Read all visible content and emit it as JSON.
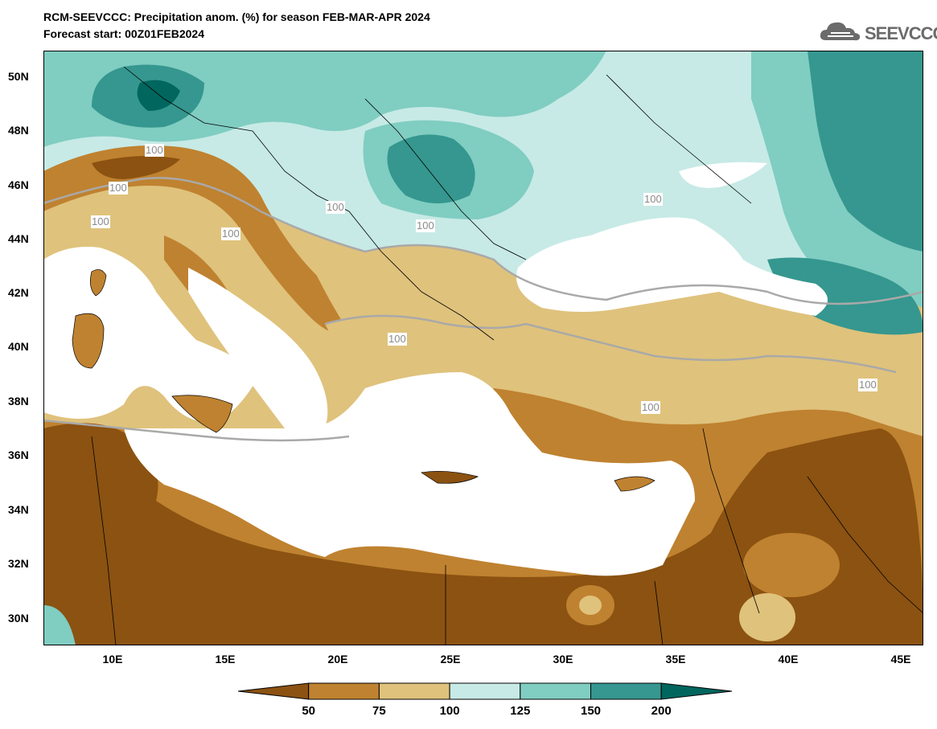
{
  "header": {
    "title_line1": "RCM-SEEVCCC: Precipitation anom. (%) for season FEB-MAR-APR 2024",
    "title_line2": "Forecast start: 00Z01FEB2024",
    "logo_text": "SEEVCCC",
    "logo_icon": "cloud-icon"
  },
  "map": {
    "lat_labels": [
      "50N",
      "48N",
      "46N",
      "44N",
      "42N",
      "40N",
      "38N",
      "36N",
      "34N",
      "32N",
      "30N"
    ],
    "lon_labels": [
      "10E",
      "15E",
      "20E",
      "25E",
      "30E",
      "35E",
      "40E",
      "45E"
    ],
    "contour_labels": [
      "100",
      "100",
      "100",
      "100",
      "100",
      "100",
      "100",
      "100",
      "100",
      "100"
    ],
    "lon_range": [
      7,
      46
    ],
    "lat_range": [
      29,
      51
    ],
    "sea_color": "#ffffff",
    "contour_color": "#a9a9a9"
  },
  "colorbar": {
    "ticks": [
      "50",
      "75",
      "100",
      "125",
      "150",
      "200"
    ],
    "colors": [
      "#8b5211",
      "#bf8230",
      "#dfc27c",
      "#c7eae6",
      "#80cdc1",
      "#35978f",
      "#01665e"
    ],
    "color_meaning": [
      "<50 dark brown",
      "50-75",
      "75-100",
      "100-125",
      "125-150",
      "150-200",
      ">200 dark teal"
    ]
  }
}
